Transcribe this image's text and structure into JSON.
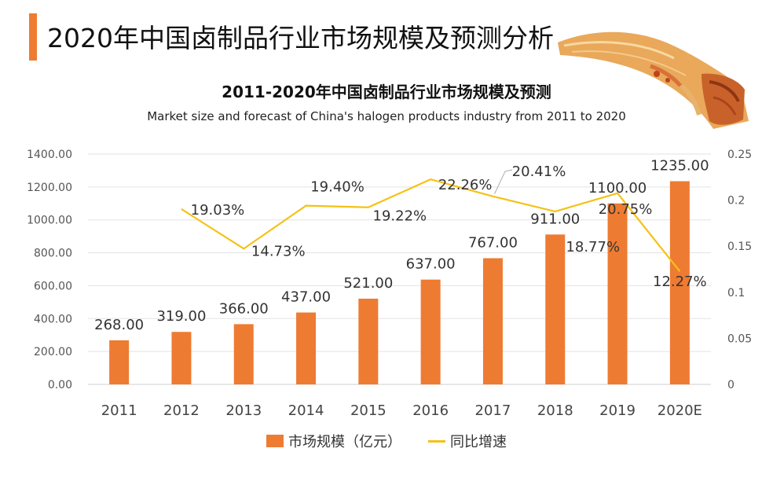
{
  "header": {
    "title": "2020年中国卤制品行业市场规模及预测分析"
  },
  "chart_data": {
    "type": "bar",
    "title": "2011-2020年中国卤制品行业市场规模及预测",
    "subtitle": "Market size and forecast of China's halogen products industry from 2011 to 2020",
    "categories": [
      "2011",
      "2012",
      "2013",
      "2014",
      "2015",
      "2016",
      "2017",
      "2018",
      "2019",
      "2020E"
    ],
    "series": [
      {
        "name": "市场规模（亿元）",
        "type": "bar",
        "axis": "left",
        "color": "#ee7b32",
        "values": [
          268.0,
          319.0,
          366.0,
          437.0,
          521.0,
          637.0,
          767.0,
          911.0,
          1100.0,
          1235.0
        ],
        "labels": [
          "268.00",
          "319.00",
          "366.00",
          "437.00",
          "521.00",
          "637.00",
          "767.00",
          "911.00",
          "1100.00",
          "1235.00"
        ]
      },
      {
        "name": "同比增速",
        "type": "line",
        "axis": "right",
        "color": "#f5c117",
        "values": [
          null,
          0.1903,
          0.1473,
          0.194,
          0.1922,
          0.2226,
          0.2041,
          0.1877,
          0.2075,
          0.1227
        ],
        "labels": [
          null,
          "19.03%",
          "14.73%",
          "19.40%",
          "19.22%",
          "22.26%",
          "20.41%",
          "18.77%",
          "20.75%",
          "12.27%"
        ]
      }
    ],
    "y_left": {
      "ylim": [
        0,
        1400
      ],
      "ticks": [
        0,
        200,
        400,
        600,
        800,
        1000,
        1200,
        1400
      ],
      "tick_labels": [
        "0.00",
        "200.00",
        "400.00",
        "600.00",
        "800.00",
        "1000.00",
        "1200.00",
        "1400.00"
      ]
    },
    "y_right": {
      "ylim": [
        0,
        0.25
      ],
      "ticks": [
        0,
        0.05,
        0.1,
        0.15,
        0.2,
        0.25
      ],
      "tick_labels": [
        "0",
        "0.05",
        "0.1",
        "0.15",
        "0.2",
        "0.25"
      ]
    },
    "grid": true,
    "legend_position": "bottom-center"
  },
  "legend": {
    "bar_label": "市场规模（亿元）",
    "line_label": "同比增速"
  },
  "icons": {
    "food_image": "braised-duck-tongue-photo"
  }
}
